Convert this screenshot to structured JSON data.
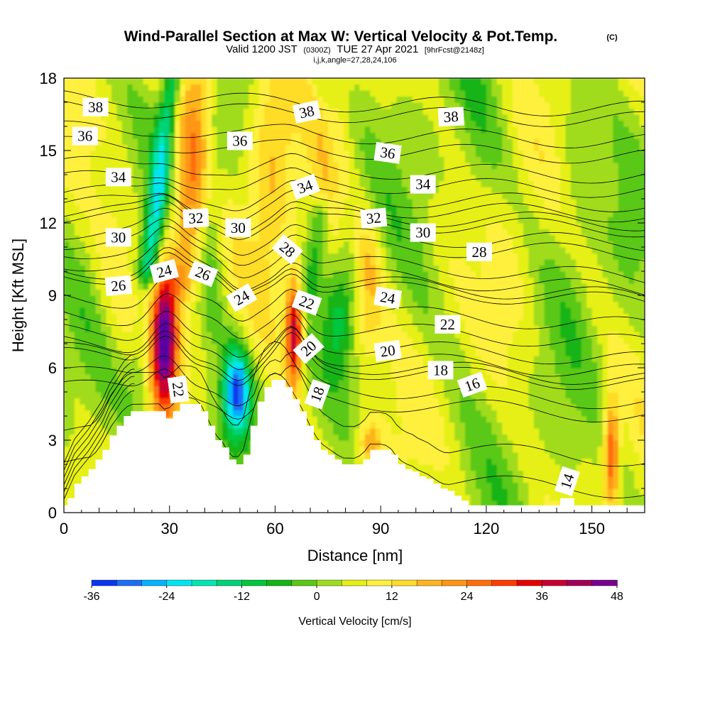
{
  "title": {
    "main": "Wind-Parallel Section at Max W: Vertical Velocity & Pot.Temp.",
    "copyright": "(C)",
    "valid_prefix": "Valid 1200 JST",
    "valid_utc": "(0300Z)",
    "valid_date": "TUE 27 Apr 2021",
    "forecast": "[9hrFcst@2148z]",
    "indices": "i,j,k,angle=27,28,24,106"
  },
  "chart_data": {
    "type": "heatmap",
    "description_fill": "vertical velocity (cm/s) shaded; potential temperature isentropes as contours",
    "xlabel": "Distance [nm]",
    "ylabel": "Height [Kft MSL]",
    "xlim": [
      0,
      165
    ],
    "ylim": [
      0,
      18
    ],
    "xticks": [
      0,
      30,
      60,
      90,
      120,
      150
    ],
    "yticks": [
      0,
      3,
      6,
      9,
      12,
      15,
      18
    ],
    "colorbar": {
      "label": "Vertical Velocity [cm/s]",
      "tick_labels": [
        "-36",
        "-24",
        "-12",
        "0",
        "12",
        "24",
        "36",
        "48"
      ],
      "tick_values": [
        -36,
        -24,
        -12,
        0,
        12,
        24,
        36,
        48
      ],
      "levels": [
        -36,
        -32,
        -28,
        -24,
        -20,
        -16,
        -12,
        -8,
        -4,
        0,
        4,
        8,
        12,
        16,
        20,
        24,
        28,
        32,
        36,
        40,
        44,
        48
      ],
      "colors": [
        "#0000e6",
        "#0a37f0",
        "#1e6ef5",
        "#00b4ff",
        "#00e6f0",
        "#00e6b4",
        "#00d278",
        "#00c83c",
        "#14b414",
        "#5ac814",
        "#a0dc1e",
        "#e6f014",
        "#fff03c",
        "#ffdc28",
        "#ffb41e",
        "#ff9614",
        "#ff6e0a",
        "#ff3c00",
        "#e60000",
        "#c80032",
        "#a0005a",
        "#780090",
        "#5a00a0"
      ]
    },
    "terrain_profile": {
      "x": [
        0,
        1,
        3,
        5,
        7,
        9,
        11,
        13,
        15,
        17,
        19,
        21,
        23,
        27,
        29,
        31,
        33,
        37,
        39,
        41,
        43,
        45,
        47,
        49,
        51,
        53,
        55,
        57,
        59,
        61,
        63,
        65,
        67,
        69,
        71,
        73,
        75,
        77,
        79,
        81,
        83,
        85,
        87,
        89,
        91,
        93,
        95,
        97,
        99,
        101,
        103,
        105,
        107,
        109,
        111,
        113,
        115,
        117,
        119,
        121,
        125,
        131,
        137,
        141,
        145,
        147,
        151,
        155,
        161,
        165
      ],
      "y": [
        0.3,
        0.6,
        1.2,
        1.5,
        1.8,
        2.2,
        2.6,
        3.2,
        3.6,
        4.0,
        4.2,
        4.2,
        4.2,
        4.2,
        3.9,
        4.2,
        4.5,
        4.5,
        4.2,
        3.6,
        3.0,
        2.7,
        2.2,
        2.0,
        2.4,
        3.6,
        4.6,
        5.2,
        5.5,
        5.5,
        5.2,
        4.7,
        4.2,
        3.6,
        3.0,
        2.6,
        2.4,
        2.2,
        2.0,
        2.0,
        2.0,
        2.2,
        2.6,
        2.6,
        2.6,
        2.4,
        2.0,
        1.8,
        1.7,
        1.5,
        1.4,
        1.2,
        1.0,
        0.9,
        0.7,
        0.5,
        0.3,
        0.3,
        0.3,
        0.3,
        0.3,
        0.3,
        0.3,
        0.6,
        0.3,
        0.3,
        0.3,
        0.3,
        0.3,
        0.3
      ]
    },
    "velocity_features": [
      {
        "x": 28.5,
        "y": 7.2,
        "sx": 2.6,
        "sy": 1.9,
        "value": 48
      },
      {
        "x": 49.0,
        "y": 5.0,
        "sx": 2.7,
        "sy": 1.3,
        "value": -36
      },
      {
        "x": 65.5,
        "y": 7.5,
        "sx": 1.7,
        "sy": 1.5,
        "value": 38
      },
      {
        "x": 155.5,
        "y": 2.5,
        "sx": 1.5,
        "sy": 1.6,
        "value": 26
      },
      {
        "x": 87.0,
        "y": 2.8,
        "sx": 2.5,
        "sy": 0.7,
        "value": 16
      },
      {
        "x": 86.0,
        "y": 9.3,
        "sx": 3.0,
        "sy": 2.0,
        "value": 14
      },
      {
        "x": 59.0,
        "y": 15.0,
        "sx": 4.5,
        "sy": 4.5,
        "value": 12
      },
      {
        "x": 34.0,
        "y": 14.0,
        "sx": 4.0,
        "sy": 4.0,
        "value": 9
      },
      {
        "x": 16.0,
        "y": 10.0,
        "sx": 5.0,
        "sy": 3.0,
        "value": 6
      },
      {
        "x": 76.0,
        "y": 14.0,
        "sx": 4.0,
        "sy": 4.0,
        "value": 8
      },
      {
        "x": 22.0,
        "y": 6.0,
        "sx": 3.0,
        "sy": 1.5,
        "value": -7
      },
      {
        "x": 42.0,
        "y": 11.0,
        "sx": 2.5,
        "sy": 3.0,
        "value": -8
      },
      {
        "x": 78.0,
        "y": 8.0,
        "sx": 3.0,
        "sy": 1.6,
        "value": -12
      },
      {
        "x": 128.0,
        "y": 10.0,
        "sx": 6.0,
        "sy": 4.0,
        "value": 3
      },
      {
        "x": 145.0,
        "y": 14.0,
        "sx": 4.0,
        "sy": 4.0,
        "value": -4
      },
      {
        "x": 118.0,
        "y": 14.0,
        "sx": 4.0,
        "sy": 4.0,
        "value": -3
      }
    ],
    "velocity_ridges": [
      {
        "x0": 24,
        "slope": 0.85,
        "y_from": 10.0,
        "y_to": 18,
        "width": 2.0,
        "value": -22
      },
      {
        "x0": 70,
        "slope": 0.9,
        "y_from": 9.0,
        "y_to": 12.5,
        "width": 2.0,
        "value": -10
      },
      {
        "x0": 34,
        "slope": 0.6,
        "y_from": 9.5,
        "y_to": 18,
        "width": 3.2,
        "value": 12
      },
      {
        "x0": 84,
        "slope": -1.2,
        "y_from": 9.0,
        "y_to": 18,
        "width": 2.2,
        "value": -6
      }
    ],
    "isentropes": {
      "levels": [
        14,
        16,
        18,
        20,
        22,
        24,
        26,
        28,
        30,
        32,
        34,
        36,
        38
      ],
      "base_heights": [
        1.5,
        4.6,
        5.9,
        6.4,
        7.6,
        9.3,
        9.8,
        11.0,
        12.0,
        12.6,
        13.6,
        15.0,
        16.5
      ],
      "labels": [
        {
          "text": "38",
          "x": 9.0,
          "y": 16.8,
          "angle": 0
        },
        {
          "text": "36",
          "x": 6.0,
          "y": 15.6,
          "angle": 0
        },
        {
          "text": "34",
          "x": 15.5,
          "y": 13.9,
          "angle": 0
        },
        {
          "text": "32",
          "x": 37.5,
          "y": 12.2,
          "angle": -3
        },
        {
          "text": "30",
          "x": 15.5,
          "y": 11.4,
          "angle": 0
        },
        {
          "text": "26",
          "x": 15.5,
          "y": 9.4,
          "angle": -5
        },
        {
          "text": "24",
          "x": 28.5,
          "y": 10.0,
          "angle": -15
        },
        {
          "text": "26",
          "x": 39.5,
          "y": 9.9,
          "angle": 22
        },
        {
          "text": "24",
          "x": 50.5,
          "y": 8.9,
          "angle": -30
        },
        {
          "text": "30",
          "x": 49.5,
          "y": 11.8,
          "angle": 0
        },
        {
          "text": "36",
          "x": 50.0,
          "y": 15.4,
          "angle": 0
        },
        {
          "text": "28",
          "x": 63.5,
          "y": 10.9,
          "angle": 40
        },
        {
          "text": "34",
          "x": 68.5,
          "y": 13.5,
          "angle": -20
        },
        {
          "text": "38",
          "x": 69.0,
          "y": 16.6,
          "angle": -12
        },
        {
          "text": "22",
          "x": 69.0,
          "y": 8.7,
          "angle": 20
        },
        {
          "text": "20",
          "x": 69.5,
          "y": 6.8,
          "angle": -42
        },
        {
          "text": "18",
          "x": 72.0,
          "y": 4.9,
          "angle": -70
        },
        {
          "text": "22",
          "x": 32.5,
          "y": 5.1,
          "angle": 82
        },
        {
          "text": "32",
          "x": 88.0,
          "y": 12.2,
          "angle": -5
        },
        {
          "text": "36",
          "x": 92.0,
          "y": 14.9,
          "angle": 8
        },
        {
          "text": "24",
          "x": 92.0,
          "y": 8.9,
          "angle": 10
        },
        {
          "text": "20",
          "x": 92.0,
          "y": 6.7,
          "angle": -8
        },
        {
          "text": "34",
          "x": 102.0,
          "y": 13.6,
          "angle": 0
        },
        {
          "text": "30",
          "x": 102.0,
          "y": 11.6,
          "angle": 0
        },
        {
          "text": "38",
          "x": 110.0,
          "y": 16.4,
          "angle": -3
        },
        {
          "text": "22",
          "x": 109.0,
          "y": 7.8,
          "angle": 0
        },
        {
          "text": "18",
          "x": 107.0,
          "y": 5.9,
          "angle": 0
        },
        {
          "text": "16",
          "x": 116.0,
          "y": 5.3,
          "angle": -20
        },
        {
          "text": "28",
          "x": 118.0,
          "y": 10.8,
          "angle": 0
        },
        {
          "text": "14",
          "x": 143.0,
          "y": 1.3,
          "angle": -72
        }
      ]
    }
  }
}
